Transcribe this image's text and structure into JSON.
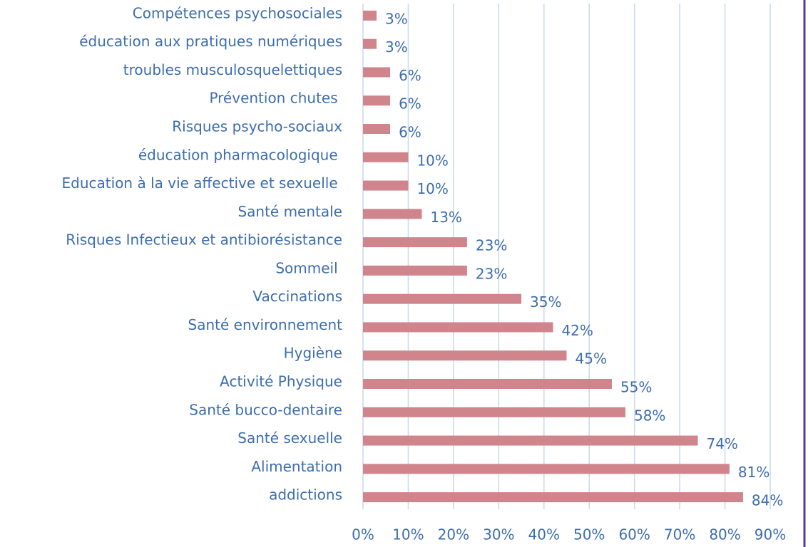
{
  "chart_data": {
    "type": "hbar",
    "categories": [
      "Compétences psychosociales",
      "éducation aux pratiques numériques",
      "troubles musculosquelettiques",
      "Prévention chutes ",
      "Risques psycho-sociaux",
      "éducation pharmacologique ",
      "Education à la vie affective et sexuelle ",
      "Santé mentale",
      "Risques Infectieux et antibiorésistance",
      "Sommeil ",
      "Vaccinations",
      "Santé environnement",
      "Hygiène",
      "Activité Physique",
      "Santé bucco-dentaire",
      "Santé sexuelle",
      "Alimentation",
      "addictions"
    ],
    "values": [
      3,
      3,
      6,
      6,
      6,
      10,
      10,
      13,
      23,
      23,
      35,
      42,
      45,
      55,
      58,
      74,
      81,
      84
    ],
    "value_labels": [
      "3%",
      "3%",
      "6%",
      "6%",
      "6%",
      "10%",
      "10%",
      "13%",
      "23%",
      "23%",
      "35%",
      "42%",
      "45%",
      "55%",
      "58%",
      "74%",
      "81%",
      "84%"
    ],
    "color": "#d0848c",
    "xlim": [
      0,
      90
    ],
    "xticks": [
      {
        "value": 0,
        "label": "0%"
      },
      {
        "value": 10,
        "label": "10%"
      },
      {
        "value": 20,
        "label": "20%"
      },
      {
        "value": 30,
        "label": "30%"
      },
      {
        "value": 40,
        "label": "40%"
      },
      {
        "value": 50,
        "label": "50%"
      },
      {
        "value": 60,
        "label": "60%"
      },
      {
        "value": 70,
        "label": "70%"
      },
      {
        "value": 80,
        "label": "80%"
      },
      {
        "value": 90,
        "label": "90%"
      }
    ],
    "grid": true
  }
}
